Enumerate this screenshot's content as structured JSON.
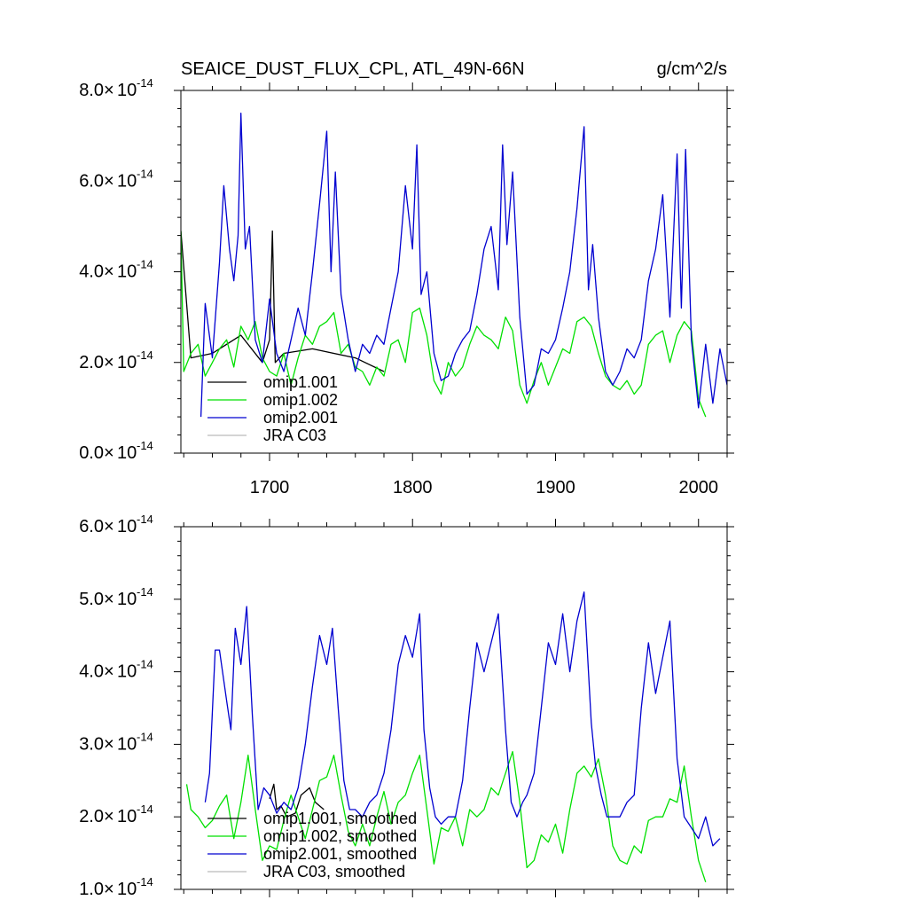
{
  "chart_data": [
    {
      "type": "line",
      "title": "SEAICE_DUST_FLUX_CPL, ATL_49N-66N",
      "units": "g/cm^2/s",
      "ylim": [
        0.0,
        8.0
      ],
      "y_exponent": "-14",
      "y_tick_values": [
        0.0,
        2.0,
        4.0,
        6.0,
        8.0
      ],
      "y_tick_labels": [
        "0.0",
        "2.0",
        "4.0",
        "6.0",
        "8.0"
      ],
      "xlim": [
        1638,
        2020
      ],
      "x_tick_values": [
        1700,
        1800,
        1900,
        2000
      ],
      "x_tick_labels": [
        "1700",
        "1800",
        "1900",
        "2000"
      ],
      "legend_position": "bottom-left",
      "series": [
        {
          "name": "omip1.001",
          "color": "#000000",
          "x": [
            1638,
            1645,
            1660,
            1680,
            1695,
            1700,
            1702,
            1704,
            1710,
            1730,
            1760,
            1780
          ],
          "y": [
            4.9,
            2.1,
            2.2,
            2.6,
            2.0,
            2.5,
            4.9,
            2.0,
            2.2,
            2.3,
            2.1,
            1.8
          ]
        },
        {
          "name": "omip1.002",
          "color": "#00e000",
          "x": [
            1638,
            1640,
            1645,
            1650,
            1655,
            1660,
            1665,
            1670,
            1675,
            1680,
            1685,
            1690,
            1695,
            1700,
            1705,
            1710,
            1715,
            1720,
            1725,
            1730,
            1735,
            1740,
            1745,
            1750,
            1755,
            1760,
            1765,
            1770,
            1775,
            1780,
            1785,
            1790,
            1795,
            1800,
            1805,
            1810,
            1815,
            1820,
            1825,
            1830,
            1835,
            1840,
            1845,
            1850,
            1855,
            1860,
            1865,
            1870,
            1875,
            1880,
            1885,
            1890,
            1895,
            1900,
            1905,
            1910,
            1915,
            1920,
            1925,
            1930,
            1935,
            1940,
            1945,
            1950,
            1955,
            1960,
            1965,
            1970,
            1975,
            1980,
            1985,
            1990,
            1995,
            2000,
            2005
          ],
          "y": [
            4.9,
            1.8,
            2.2,
            2.4,
            1.7,
            2.0,
            2.3,
            2.5,
            1.9,
            2.8,
            2.5,
            2.9,
            2.1,
            1.8,
            1.7,
            2.2,
            1.5,
            2.1,
            2.6,
            2.4,
            2.8,
            2.9,
            3.1,
            2.2,
            2.4,
            1.9,
            1.8,
            1.5,
            1.9,
            1.7,
            2.4,
            2.5,
            2.0,
            3.1,
            3.2,
            2.6,
            1.6,
            1.3,
            2.0,
            1.7,
            1.9,
            2.4,
            2.8,
            2.6,
            2.5,
            2.3,
            3.0,
            2.7,
            1.5,
            1.1,
            1.6,
            2.0,
            1.5,
            1.9,
            2.3,
            2.2,
            2.9,
            3.0,
            2.8,
            2.2,
            1.7,
            1.5,
            1.4,
            1.6,
            1.3,
            1.5,
            2.4,
            2.6,
            2.7,
            2.0,
            2.6,
            2.9,
            2.7,
            1.2,
            0.8
          ]
        },
        {
          "name": "omip2.001",
          "color": "#0000d0",
          "x": [
            1652,
            1655,
            1660,
            1665,
            1668,
            1672,
            1675,
            1678,
            1680,
            1683,
            1686,
            1690,
            1695,
            1700,
            1705,
            1710,
            1715,
            1720,
            1725,
            1730,
            1735,
            1740,
            1743,
            1746,
            1750,
            1755,
            1760,
            1765,
            1770,
            1775,
            1780,
            1785,
            1790,
            1795,
            1800,
            1803,
            1806,
            1810,
            1815,
            1820,
            1825,
            1830,
            1835,
            1840,
            1845,
            1850,
            1855,
            1860,
            1863,
            1866,
            1870,
            1875,
            1880,
            1885,
            1890,
            1895,
            1900,
            1905,
            1910,
            1915,
            1920,
            1923,
            1926,
            1930,
            1935,
            1940,
            1945,
            1950,
            1955,
            1960,
            1965,
            1970,
            1975,
            1980,
            1985,
            1988,
            1991,
            1995,
            2000,
            2005,
            2010,
            2015,
            2020
          ],
          "y": [
            0.8,
            3.3,
            2.1,
            4.2,
            5.9,
            4.5,
            3.8,
            4.8,
            7.5,
            4.5,
            5.0,
            2.5,
            2.0,
            3.4,
            2.2,
            1.8,
            2.5,
            3.2,
            2.6,
            4.0,
            5.5,
            7.1,
            4.0,
            6.2,
            3.5,
            2.5,
            1.8,
            2.4,
            2.2,
            2.6,
            2.4,
            3.2,
            4.0,
            5.9,
            4.5,
            6.8,
            3.5,
            4.0,
            2.2,
            1.6,
            1.7,
            2.2,
            2.5,
            2.7,
            3.5,
            4.5,
            5.0,
            3.6,
            6.8,
            4.6,
            6.2,
            3.0,
            1.3,
            1.5,
            2.3,
            2.2,
            2.5,
            3.2,
            4.0,
            5.4,
            7.2,
            3.6,
            4.6,
            3.0,
            1.8,
            1.5,
            1.8,
            2.3,
            2.1,
            2.5,
            3.8,
            4.5,
            5.7,
            3.0,
            6.6,
            3.2,
            6.7,
            2.5,
            1.0,
            2.4,
            1.1,
            2.3,
            1.5
          ]
        },
        {
          "name": "JRA C03",
          "color": "#bbbbbb",
          "x": [],
          "y": []
        }
      ]
    },
    {
      "type": "line",
      "title": "",
      "ylim": [
        1.0,
        6.0
      ],
      "y_exponent": "-14",
      "y_tick_values": [
        1.0,
        2.0,
        3.0,
        4.0,
        5.0,
        6.0
      ],
      "y_tick_labels": [
        "1.0",
        "2.0",
        "3.0",
        "4.0",
        "5.0",
        "6.0"
      ],
      "xlim": [
        1638,
        2020
      ],
      "x_tick_values": [
        1700,
        1800,
        1900,
        2000
      ],
      "legend_position": "bottom-left",
      "series": [
        {
          "name": "omip1.001, smoothed",
          "color": "#000000",
          "x": [
            1700,
            1703,
            1705,
            1708,
            1712,
            1718,
            1722,
            1728,
            1732,
            1738
          ],
          "y": [
            2.25,
            2.45,
            2.1,
            2.15,
            2.0,
            2.05,
            2.3,
            2.4,
            2.2,
            2.1
          ]
        },
        {
          "name": "omip1.002, smoothed",
          "color": "#00e000",
          "x": [
            1642,
            1645,
            1650,
            1655,
            1660,
            1665,
            1670,
            1675,
            1680,
            1685,
            1690,
            1695,
            1700,
            1705,
            1710,
            1715,
            1720,
            1725,
            1730,
            1735,
            1740,
            1745,
            1750,
            1755,
            1760,
            1765,
            1770,
            1775,
            1780,
            1785,
            1790,
            1795,
            1800,
            1805,
            1810,
            1815,
            1820,
            1825,
            1830,
            1835,
            1840,
            1845,
            1850,
            1855,
            1860,
            1865,
            1870,
            1875,
            1880,
            1885,
            1890,
            1895,
            1900,
            1905,
            1910,
            1915,
            1920,
            1925,
            1930,
            1935,
            1940,
            1945,
            1950,
            1955,
            1960,
            1965,
            1970,
            1975,
            1980,
            1985,
            1990,
            1995,
            2000,
            2005
          ],
          "y": [
            2.45,
            2.1,
            2.0,
            1.85,
            1.95,
            2.15,
            2.3,
            1.7,
            2.2,
            2.85,
            2.1,
            1.4,
            1.6,
            1.55,
            1.95,
            2.3,
            2.0,
            1.7,
            2.1,
            2.5,
            2.55,
            2.85,
            2.3,
            1.8,
            1.6,
            1.9,
            1.6,
            2.0,
            2.35,
            1.9,
            2.2,
            2.3,
            2.6,
            2.85,
            2.1,
            1.35,
            1.85,
            1.8,
            2.0,
            1.6,
            2.1,
            2.0,
            2.1,
            2.4,
            2.3,
            2.6,
            2.9,
            2.2,
            1.3,
            1.4,
            1.75,
            1.65,
            1.9,
            1.5,
            2.1,
            2.6,
            2.7,
            2.55,
            2.8,
            2.3,
            1.6,
            1.4,
            1.35,
            1.6,
            1.5,
            1.95,
            2.0,
            2.0,
            2.25,
            2.2,
            2.7,
            2.0,
            1.4,
            1.1
          ]
        },
        {
          "name": "omip2.001, smoothed",
          "color": "#0000d0",
          "x": [
            1655,
            1658,
            1662,
            1665,
            1670,
            1673,
            1676,
            1680,
            1684,
            1688,
            1692,
            1696,
            1700,
            1705,
            1710,
            1715,
            1720,
            1725,
            1730,
            1735,
            1740,
            1744,
            1748,
            1752,
            1756,
            1760,
            1765,
            1770,
            1775,
            1780,
            1785,
            1790,
            1795,
            1800,
            1805,
            1808,
            1812,
            1816,
            1820,
            1825,
            1830,
            1835,
            1840,
            1845,
            1850,
            1855,
            1860,
            1865,
            1869,
            1873,
            1877,
            1880,
            1885,
            1890,
            1895,
            1900,
            1905,
            1910,
            1915,
            1920,
            1925,
            1928,
            1932,
            1936,
            1940,
            1945,
            1950,
            1955,
            1960,
            1965,
            1970,
            1975,
            1980,
            1985,
            1990,
            1995,
            2000,
            2005,
            2010,
            2015
          ],
          "y": [
            2.2,
            2.6,
            4.3,
            4.3,
            3.6,
            3.2,
            4.6,
            4.1,
            4.9,
            3.4,
            2.1,
            2.4,
            2.3,
            2.05,
            2.2,
            2.1,
            2.4,
            3.0,
            3.8,
            4.5,
            4.1,
            4.6,
            3.5,
            2.5,
            2.1,
            2.1,
            2.0,
            2.2,
            2.3,
            2.6,
            3.2,
            4.1,
            4.5,
            4.2,
            4.8,
            3.2,
            2.4,
            2.0,
            1.9,
            2.0,
            2.0,
            2.5,
            3.5,
            4.4,
            4.0,
            4.4,
            4.8,
            3.2,
            2.2,
            2.0,
            2.2,
            2.3,
            2.6,
            3.5,
            4.4,
            4.1,
            4.8,
            4.0,
            4.7,
            5.1,
            3.3,
            2.7,
            2.3,
            2.0,
            2.0,
            2.0,
            2.2,
            2.3,
            3.5,
            4.4,
            3.7,
            4.2,
            4.7,
            2.8,
            2.0,
            1.85,
            1.7,
            2.0,
            1.6,
            1.7
          ]
        },
        {
          "name": "JRA C03, smoothed",
          "color": "#bbbbbb",
          "x": [],
          "y": []
        }
      ]
    }
  ]
}
